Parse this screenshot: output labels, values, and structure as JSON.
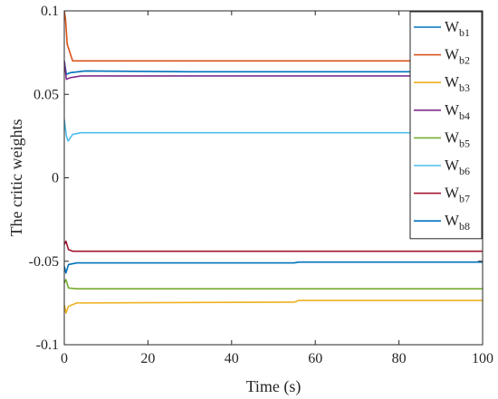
{
  "chart_data": {
    "type": "line",
    "title": "",
    "xlabel": "Time (s)",
    "ylabel": "The critic weights",
    "xlim": [
      0,
      100
    ],
    "ylim": [
      -0.1,
      0.1
    ],
    "xticks": [
      0,
      20,
      40,
      60,
      80,
      100
    ],
    "yticks": [
      -0.1,
      -0.05,
      0,
      0.05,
      0.1
    ],
    "xtick_labels": [
      "0",
      "20",
      "40",
      "60",
      "80",
      "100"
    ],
    "ytick_labels": [
      "-0.1",
      "-0.05",
      "0",
      "0.05",
      "0.1"
    ],
    "grid": false,
    "legend_position": "top-right",
    "series": [
      {
        "name": "W",
        "sub": "b1",
        "color": "#0072BD",
        "points": [
          [
            0,
            0.07
          ],
          [
            0.5,
            0.062
          ],
          [
            1.5,
            0.063
          ],
          [
            5,
            0.064
          ],
          [
            30,
            0.0635
          ],
          [
            100,
            0.0635
          ]
        ]
      },
      {
        "name": "W",
        "sub": "b2",
        "color": "#D95319",
        "points": [
          [
            0,
            0.1
          ],
          [
            0.3,
            0.095
          ],
          [
            0.7,
            0.08
          ],
          [
            2,
            0.07
          ],
          [
            100,
            0.07
          ]
        ]
      },
      {
        "name": "W",
        "sub": "b3",
        "color": "#EDB120",
        "points": [
          [
            0,
            -0.076
          ],
          [
            0.4,
            -0.081
          ],
          [
            1,
            -0.077
          ],
          [
            3,
            -0.075
          ],
          [
            55,
            -0.0745
          ],
          [
            56,
            -0.0735
          ],
          [
            100,
            -0.0735
          ]
        ]
      },
      {
        "name": "W",
        "sub": "b4",
        "color": "#7E2F8E",
        "points": [
          [
            0,
            0.07
          ],
          [
            0.5,
            0.059
          ],
          [
            1.5,
            0.06
          ],
          [
            4,
            0.061
          ],
          [
            100,
            0.061
          ]
        ]
      },
      {
        "name": "W",
        "sub": "b5",
        "color": "#77AC30",
        "points": [
          [
            0,
            -0.063
          ],
          [
            0.4,
            -0.061
          ],
          [
            1,
            -0.066
          ],
          [
            3,
            -0.0665
          ],
          [
            100,
            -0.0665
          ]
        ]
      },
      {
        "name": "W",
        "sub": "b6",
        "color": "#4DBEEE",
        "points": [
          [
            0,
            0.035
          ],
          [
            0.5,
            0.025
          ],
          [
            0.9,
            0.022
          ],
          [
            2,
            0.026
          ],
          [
            4,
            0.027
          ],
          [
            100,
            0.027
          ]
        ]
      },
      {
        "name": "W",
        "sub": "b7",
        "color": "#A2142F",
        "points": [
          [
            0,
            -0.04
          ],
          [
            0.4,
            -0.038
          ],
          [
            1,
            -0.043
          ],
          [
            2,
            -0.044
          ],
          [
            100,
            -0.044
          ]
        ]
      },
      {
        "name": "W",
        "sub": "b8",
        "color": "#0072BD",
        "points": [
          [
            0,
            -0.053
          ],
          [
            0.4,
            -0.057
          ],
          [
            1,
            -0.052
          ],
          [
            3,
            -0.051
          ],
          [
            55,
            -0.051
          ],
          [
            56,
            -0.0505
          ],
          [
            100,
            -0.0505
          ]
        ]
      }
    ]
  }
}
